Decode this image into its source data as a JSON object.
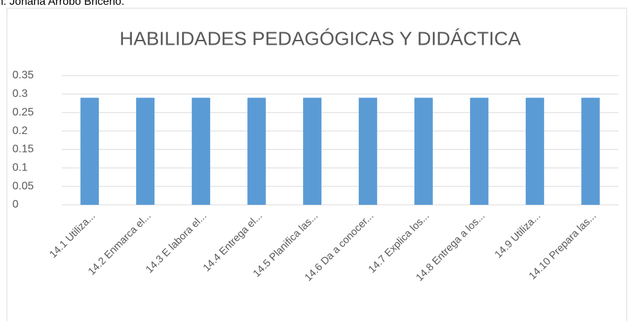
{
  "caption": "n: Johana Arrobo Briceño.",
  "chart_data": {
    "type": "bar",
    "title": "HABILIDADES PEDAGÓGICAS Y DIDÁCTICA",
    "categories": [
      "14.1 Utiliza...",
      "14.2 Enmarca el...",
      "14.3 E labora el...",
      "14.4 Entrega el...",
      "14.5 Planifica las...",
      "14.6 Da a conocer...",
      "14.7 Explica los...",
      "14.8 Entrega a los...",
      "14.9 Utiliza...",
      "14.10 Prepara las..."
    ],
    "values": [
      0.29,
      0.29,
      0.29,
      0.29,
      0.29,
      0.29,
      0.29,
      0.29,
      0.29,
      0.29
    ],
    "color": "#5b9bd5",
    "ylim": [
      0,
      0.35
    ],
    "yticks": [
      0,
      0.05,
      0.1,
      0.15,
      0.2,
      0.25,
      0.3,
      0.35
    ],
    "grid": true
  }
}
